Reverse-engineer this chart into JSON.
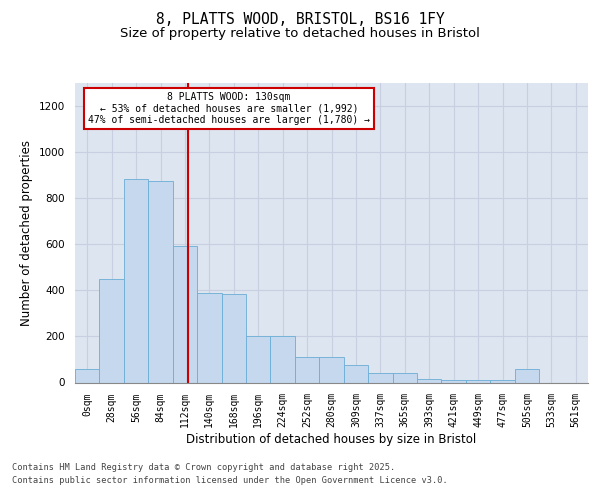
{
  "title_line1": "8, PLATTS WOOD, BRISTOL, BS16 1FY",
  "title_line2": "Size of property relative to detached houses in Bristol",
  "xlabel": "Distribution of detached houses by size in Bristol",
  "ylabel": "Number of detached properties",
  "bar_values": [
    60,
    450,
    880,
    875,
    590,
    390,
    385,
    200,
    200,
    110,
    110,
    75,
    40,
    40,
    15,
    10,
    10,
    10,
    60,
    0,
    0
  ],
  "categories": [
    "0sqm",
    "28sqm",
    "56sqm",
    "84sqm",
    "112sqm",
    "140sqm",
    "168sqm",
    "196sqm",
    "224sqm",
    "252sqm",
    "280sqm",
    "309sqm",
    "337sqm",
    "365sqm",
    "393sqm",
    "421sqm",
    "449sqm",
    "477sqm",
    "505sqm",
    "533sqm",
    "561sqm"
  ],
  "bar_color": "#c5d8ee",
  "bar_edge_color": "#6aaed6",
  "vline_color": "#cc0000",
  "annotation_text": "8 PLATTS WOOD: 130sqm\n← 53% of detached houses are smaller (1,992)\n47% of semi-detached houses are larger (1,780) →",
  "ylim": [
    0,
    1300
  ],
  "yticks": [
    0,
    200,
    400,
    600,
    800,
    1000,
    1200
  ],
  "grid_color": "#c8cfe0",
  "background_color": "#dde5f0",
  "footer_line1": "Contains HM Land Registry data © Crown copyright and database right 2025.",
  "footer_line2": "Contains public sector information licensed under the Open Government Licence v3.0."
}
